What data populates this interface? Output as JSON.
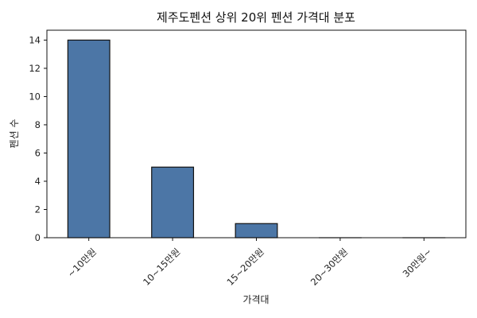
{
  "chart_data": {
    "type": "bar",
    "title": "제주도펜션 상위 20위 펜션 가격대 분포",
    "xlabel": "가격대",
    "ylabel": "펜션 수",
    "categories": [
      "~10만원",
      "10~15만원",
      "15~20만원",
      "20~30만원",
      "30만원~"
    ],
    "values": [
      14,
      5,
      1,
      0,
      0
    ],
    "ylim": [
      0,
      14.7
    ],
    "yticks": [
      0,
      2,
      4,
      6,
      8,
      10,
      12,
      14
    ],
    "grid": false,
    "bar_color": "#4c76a6",
    "edge_color": "#111111"
  }
}
